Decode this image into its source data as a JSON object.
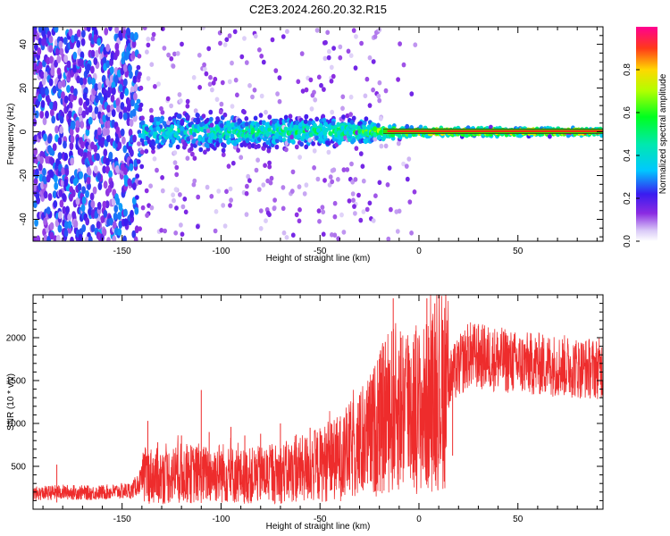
{
  "title": "C2E3.2024.260.20.32.R15",
  "chart_data": [
    {
      "type": "heatmap",
      "title": "C2E3.2024.260.20.32.R15",
      "xlabel": "Height of straight line (km)",
      "ylabel": "Frequency (Hz)",
      "xlim": [
        -195,
        93
      ],
      "ylim": [
        -50,
        48
      ],
      "x_ticks": [
        -150,
        -100,
        -50,
        0,
        50
      ],
      "y_ticks": [
        -40,
        -20,
        0,
        20,
        40
      ],
      "colorbar": {
        "label": "Normalized spectral amplitude",
        "range": [
          0,
          1
        ],
        "ticks": [
          0.0,
          0.2,
          0.4,
          0.6,
          0.8
        ],
        "tick_labels": [
          "0.0",
          "0.2",
          "0.4",
          "0.6",
          "0.8"
        ],
        "colormap": "rainbow"
      },
      "trend": [
        {
          "x": -195,
          "spread_hz": 48,
          "peak": 0.35
        },
        {
          "x": -143,
          "spread_hz": 48,
          "peak": 0.35
        },
        {
          "x": -140,
          "spread_hz": 9,
          "peak": 0.45
        },
        {
          "x": -100,
          "spread_hz": 9,
          "peak": 0.5
        },
        {
          "x": -60,
          "spread_hz": 7,
          "peak": 0.55
        },
        {
          "x": -30,
          "spread_hz": 6,
          "peak": 0.6
        },
        {
          "x": -15,
          "spread_hz": 3,
          "peak": 0.85
        },
        {
          "x": 0,
          "spread_hz": 2,
          "peak": 0.95
        },
        {
          "x": 93,
          "spread_hz": 1.5,
          "peak": 1.0
        }
      ]
    },
    {
      "type": "line",
      "title": "",
      "xlabel": "Height of straight line (km)",
      "ylabel": "SNR (10 * v/v)",
      "xlim": [
        -195,
        93
      ],
      "ylim": [
        0,
        2500
      ],
      "x_ticks": [
        -150,
        -100,
        -50,
        0,
        50
      ],
      "y_ticks": [
        500,
        1000,
        1500,
        2000
      ],
      "series": [
        {
          "color": "#ee2c2c",
          "points": [
            [
              -195,
              180
            ],
            [
              -180,
              200
            ],
            [
              -165,
              190
            ],
            [
              -150,
              210
            ],
            [
              -145,
              220
            ],
            [
              -138,
              400
            ],
            [
              -130,
              380
            ],
            [
              -120,
              420
            ],
            [
              -110,
              400
            ],
            [
              -100,
              430
            ],
            [
              -90,
              380
            ],
            [
              -80,
              400
            ],
            [
              -70,
              420
            ],
            [
              -60,
              460
            ],
            [
              -50,
              520
            ],
            [
              -40,
              600
            ],
            [
              -30,
              750
            ],
            [
              -25,
              850
            ],
            [
              -20,
              1000
            ],
            [
              -15,
              1150
            ],
            [
              -10,
              1200
            ],
            [
              -5,
              1250
            ],
            [
              0,
              1150
            ],
            [
              5,
              1200
            ],
            [
              10,
              1350
            ],
            [
              15,
              1500
            ],
            [
              20,
              1650
            ],
            [
              25,
              1800
            ],
            [
              30,
              1780
            ],
            [
              40,
              1750
            ],
            [
              50,
              1700
            ],
            [
              60,
              1690
            ],
            [
              70,
              1680
            ],
            [
              80,
              1650
            ],
            [
              93,
              1640
            ]
          ],
          "spikes": [
            [
              -183,
              520
            ],
            [
              -137,
              1030
            ],
            [
              -132,
              780
            ],
            [
              -120,
              860
            ],
            [
              -110,
              1390
            ],
            [
              -106,
              900
            ],
            [
              -95,
              960
            ],
            [
              -88,
              860
            ],
            [
              -80,
              880
            ],
            [
              -70,
              1000
            ],
            [
              -62,
              870
            ],
            [
              -55,
              950
            ],
            [
              -44,
              990
            ],
            [
              -38,
              1050
            ],
            [
              -30,
              1330
            ],
            [
              -24,
              1500
            ],
            [
              -20,
              1750
            ],
            [
              -17,
              1950
            ],
            [
              -13,
              2460
            ],
            [
              -9,
              2000
            ],
            [
              -5,
              1820
            ],
            [
              4,
              2460
            ],
            [
              8,
              2400
            ],
            [
              12,
              2200
            ],
            [
              17,
              1720
            ]
          ]
        }
      ]
    }
  ]
}
